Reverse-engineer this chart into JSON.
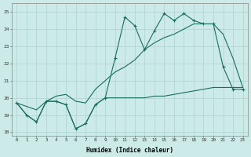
{
  "xlabel": "Humidex (Indice chaleur)",
  "bg_color": "#cceae7",
  "grid_color": "#aad4d0",
  "line_color": "#1a6e5e",
  "xlim": [
    -0.5,
    23.5
  ],
  "ylim": [
    17.8,
    25.5
  ],
  "xticks": [
    0,
    1,
    2,
    3,
    4,
    5,
    6,
    7,
    8,
    9,
    10,
    11,
    12,
    13,
    14,
    15,
    16,
    17,
    18,
    19,
    20,
    21,
    22,
    23
  ],
  "yticks": [
    18,
    19,
    20,
    21,
    22,
    23,
    24,
    25
  ],
  "series1": [
    19.7,
    19.0,
    18.6,
    19.8,
    19.8,
    19.6,
    18.2,
    18.5,
    19.6,
    20.0,
    22.3,
    24.7,
    24.2,
    22.8,
    23.9,
    24.9,
    24.5,
    24.9,
    24.5,
    24.3,
    24.3,
    21.8,
    20.5,
    20.5
  ],
  "series2": [
    19.7,
    19.0,
    18.6,
    19.8,
    19.8,
    19.6,
    18.2,
    18.5,
    19.6,
    20.0,
    20.0,
    20.0,
    20.0,
    20.0,
    20.1,
    20.1,
    20.2,
    20.3,
    20.4,
    20.5,
    20.6,
    20.6,
    20.6,
    20.6
  ],
  "series3": [
    19.7,
    19.5,
    19.3,
    19.8,
    20.1,
    20.2,
    19.8,
    19.7,
    20.5,
    21.0,
    21.5,
    21.8,
    22.2,
    22.8,
    23.2,
    23.5,
    23.7,
    24.0,
    24.3,
    24.3,
    24.3,
    23.7,
    22.3,
    20.6
  ]
}
